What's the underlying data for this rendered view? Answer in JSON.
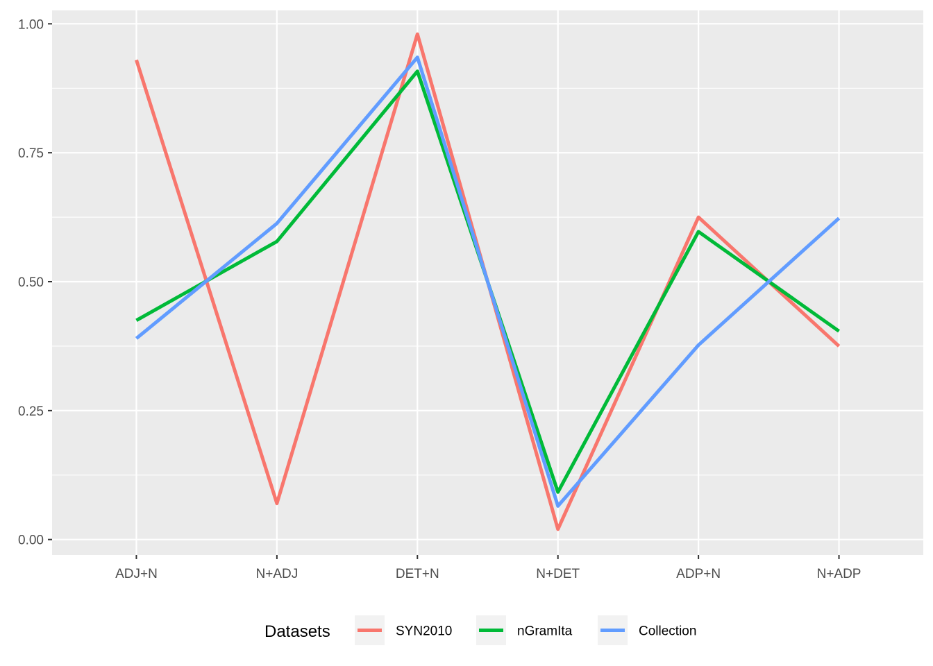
{
  "chart_data": {
    "type": "line",
    "categories": [
      "ADJ+N",
      "N+ADJ",
      "DET+N",
      "N+DET",
      "ADP+N",
      "N+ADP"
    ],
    "series": [
      {
        "name": "SYN2010",
        "color": "#F8766D",
        "values": [
          0.93,
          0.07,
          0.98,
          0.02,
          0.625,
          0.375
        ]
      },
      {
        "name": "nGramIta",
        "color": "#00BA38",
        "values": [
          0.425,
          0.578,
          0.908,
          0.092,
          0.597,
          0.404
        ]
      },
      {
        "name": "Collection",
        "color": "#619CFF",
        "values": [
          0.39,
          0.613,
          0.935,
          0.065,
          0.377,
          0.623
        ]
      }
    ],
    "yticks": [
      "0.00",
      "0.25",
      "0.50",
      "0.75",
      "1.00"
    ],
    "ylim": [
      -0.03,
      1.026
    ],
    "grid": true,
    "legend": {
      "title": "Datasets",
      "position": "bottom"
    },
    "panel_color": "#EBEBEB"
  }
}
